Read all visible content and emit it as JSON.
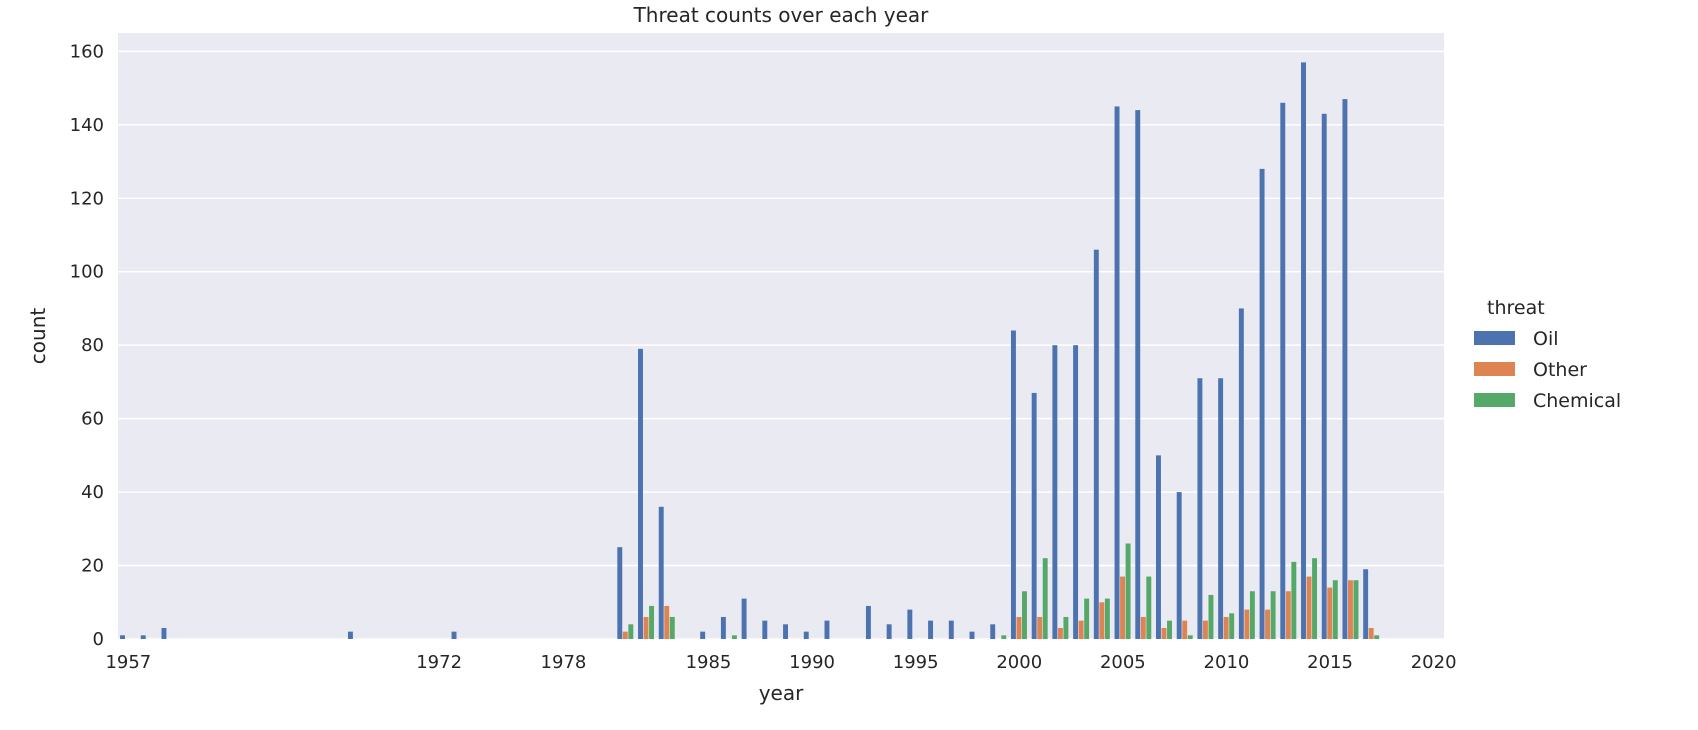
{
  "chart_data": {
    "type": "bar",
    "title": "Threat counts over each year",
    "xlabel": "year",
    "ylabel": "count",
    "ylim": [
      0,
      165
    ],
    "yticks": [
      0,
      20,
      40,
      60,
      80,
      100,
      120,
      140,
      160
    ],
    "grid": true,
    "legend": {
      "title": "threat",
      "placement": "right"
    },
    "categories": [
      "1957",
      "1958",
      "1959",
      "1960",
      "1961",
      "1962",
      "1963",
      "1964",
      "1965",
      "1966",
      "1967",
      "1968",
      "1969",
      "1970",
      "1971",
      "1972",
      "1973",
      "1974",
      "1975",
      "1976",
      "1977",
      "1978",
      "1979",
      "1980",
      "1981",
      "1982",
      "1983",
      "1984",
      "1985",
      "1986",
      "1987",
      "1988",
      "1989",
      "1990",
      "1991",
      "1992",
      "1993",
      "1994",
      "1995",
      "1996",
      "1997",
      "1998",
      "1999",
      "2000",
      "2001",
      "2002",
      "2003",
      "2004",
      "2005",
      "2006",
      "2007",
      "2008",
      "2009",
      "2010",
      "2011",
      "2012",
      "2013",
      "2014",
      "2015",
      "2016",
      "2017",
      "2018",
      "2019",
      "2020"
    ],
    "visible_tick_labels": [
      "1957",
      "1972",
      "1978",
      "1985",
      "1990",
      "1995",
      "2000",
      "2005",
      "2010",
      "2015",
      "2020"
    ],
    "series": [
      {
        "name": "Oil",
        "color": "#4c72b0",
        "values": [
          1,
          1,
          3,
          0,
          0,
          0,
          0,
          0,
          0,
          0,
          0,
          2,
          0,
          0,
          0,
          0,
          2,
          0,
          0,
          0,
          0,
          0,
          0,
          0,
          25,
          79,
          36,
          0,
          2,
          6,
          11,
          5,
          4,
          2,
          5,
          0,
          9,
          4,
          8,
          5,
          5,
          2,
          4,
          84,
          67,
          80,
          80,
          106,
          145,
          144,
          50,
          40,
          71,
          71,
          90,
          128,
          146,
          157,
          143,
          147,
          19,
          0,
          0,
          0
        ]
      },
      {
        "name": "Other",
        "color": "#dd8452",
        "values": [
          0,
          0,
          0,
          0,
          0,
          0,
          0,
          0,
          0,
          0,
          0,
          0,
          0,
          0,
          0,
          0,
          0,
          0,
          0,
          0,
          0,
          0,
          0,
          0,
          2,
          6,
          9,
          0,
          0,
          0,
          0,
          0,
          0,
          0,
          0,
          0,
          0,
          0,
          0,
          0,
          0,
          0,
          0,
          6,
          6,
          3,
          5,
          10,
          17,
          6,
          3,
          5,
          5,
          6,
          8,
          8,
          13,
          17,
          14,
          16,
          3,
          0,
          0,
          0
        ]
      },
      {
        "name": "Chemical",
        "color": "#55a868",
        "values": [
          0,
          0,
          0,
          0,
          0,
          0,
          0,
          0,
          0,
          0,
          0,
          0,
          0,
          0,
          0,
          0,
          0,
          0,
          0,
          0,
          0,
          0,
          0,
          0,
          4,
          9,
          6,
          0,
          0,
          1,
          0,
          0,
          0,
          0,
          0,
          0,
          0,
          0,
          0,
          0,
          0,
          0,
          1,
          13,
          22,
          6,
          11,
          11,
          26,
          17,
          5,
          1,
          12,
          7,
          13,
          13,
          21,
          22,
          16,
          16,
          1,
          0,
          0,
          0
        ]
      }
    ]
  }
}
